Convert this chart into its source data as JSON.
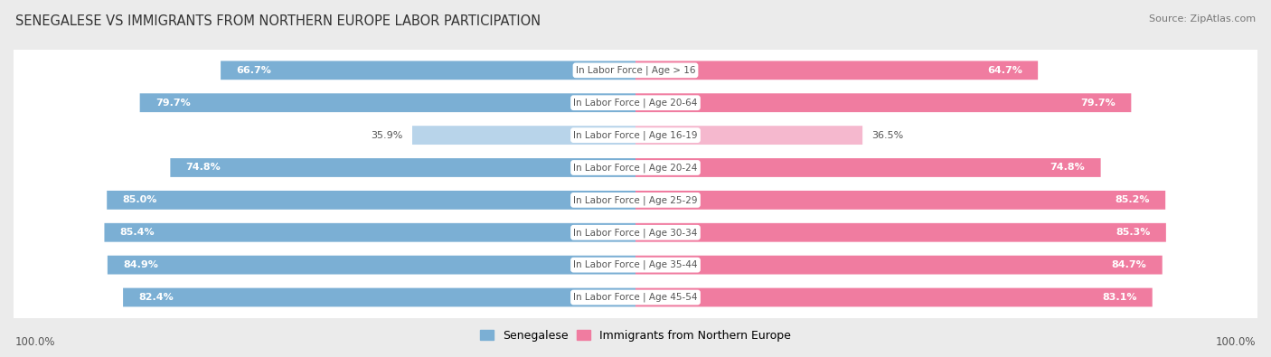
{
  "title": "SENEGALESE VS IMMIGRANTS FROM NORTHERN EUROPE LABOR PARTICIPATION",
  "source": "Source: ZipAtlas.com",
  "categories": [
    "In Labor Force | Age > 16",
    "In Labor Force | Age 20-64",
    "In Labor Force | Age 16-19",
    "In Labor Force | Age 20-24",
    "In Labor Force | Age 25-29",
    "In Labor Force | Age 30-34",
    "In Labor Force | Age 35-44",
    "In Labor Force | Age 45-54"
  ],
  "senegalese": [
    66.7,
    79.7,
    35.9,
    74.8,
    85.0,
    85.4,
    84.9,
    82.4
  ],
  "immigrants": [
    64.7,
    79.7,
    36.5,
    74.8,
    85.2,
    85.3,
    84.7,
    83.1
  ],
  "senegalese_color": "#7bafd4",
  "senegalese_color_light": "#b8d4ea",
  "immigrants_color": "#f07ca0",
  "immigrants_color_light": "#f5b8ce",
  "label_color_white": "#ffffff",
  "label_color_dark": "#555555",
  "background_color": "#ebebeb",
  "row_bg_color": "#ffffff",
  "center_label_color": "#555555",
  "max_value": 100.0,
  "threshold": 50.0,
  "legend_labels": [
    "Senegalese",
    "Immigrants from Northern Europe"
  ],
  "bottom_left_label": "100.0%",
  "bottom_right_label": "100.0%"
}
